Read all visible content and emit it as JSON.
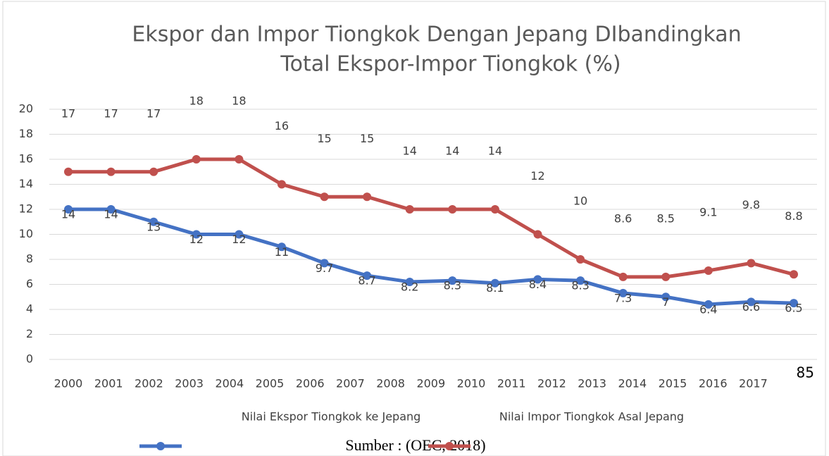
{
  "chart_data": {
    "type": "line",
    "title": [
      "Ekspor dan Impor Tiongkok Dengan Jepang DIbandingkan",
      "Total Ekspor-Impor Tiongkok (%)"
    ],
    "categories": [
      "2000",
      "2001",
      "2002",
      "2003",
      "2004",
      "2005",
      "2006",
      "2007",
      "2008",
      "2009",
      "2010",
      "2011",
      "2012",
      "2013",
      "2014",
      "2015",
      "2016",
      "2017"
    ],
    "series": [
      {
        "name": "Nilai Ekspor Tiongkok ke Jepang",
        "color": "#4472c4",
        "values": [
          12,
          12,
          11,
          10,
          10,
          9,
          7.7,
          6.7,
          6.2,
          6.3,
          6.1,
          6.4,
          6.3,
          5.3,
          5.0,
          4.4,
          4.6,
          4.5
        ],
        "labels": [
          14,
          14,
          13,
          12,
          12,
          11,
          9.7,
          8.7,
          8.2,
          8.3,
          8.1,
          8.4,
          8.3,
          7.3,
          7,
          6.4,
          6.6,
          6.5
        ]
      },
      {
        "name": "Nilai Impor Tiongkok Asal Jepang",
        "color": "#c0504d",
        "values": [
          15,
          15,
          15,
          16,
          16,
          14,
          13,
          13,
          12,
          12,
          12,
          10,
          8,
          6.6,
          6.6,
          7.1,
          7.7,
          6.8
        ],
        "labels": [
          17,
          17,
          17,
          18,
          18,
          16,
          15,
          15,
          14,
          14,
          14,
          12,
          10,
          8.6,
          8.5,
          9.1,
          9.8,
          8.8
        ]
      }
    ],
    "ylim": [
      0,
      20
    ],
    "yticks": [
      0,
      2,
      4,
      6,
      8,
      10,
      12,
      14,
      16,
      18,
      20
    ],
    "grid": true,
    "page_number": "85",
    "caption": "Sumber : (OEC, 2018)"
  }
}
